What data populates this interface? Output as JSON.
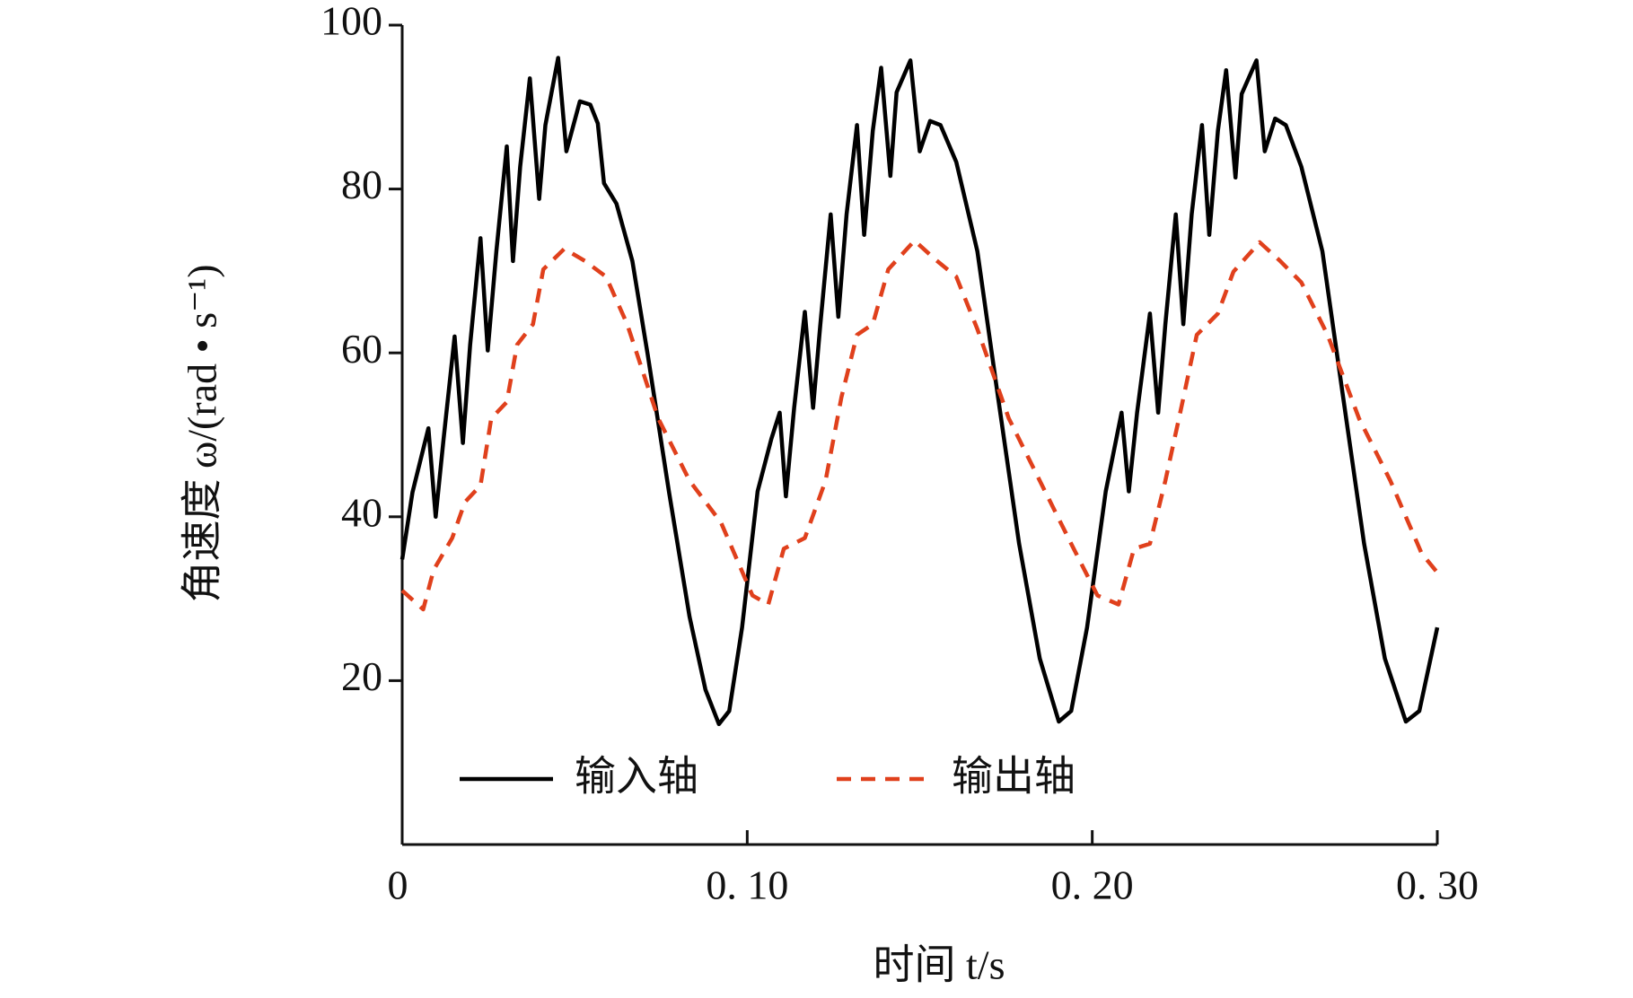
{
  "chart_data": {
    "type": "line",
    "xlabel": "时间 t/s",
    "ylabel": "角速度 ω/(rad • s⁻¹)",
    "xlim": [
      0,
      0.3
    ],
    "ylim": [
      0,
      100
    ],
    "xticks": [
      0,
      {
        "value": 0.1,
        "label": "0. 10"
      },
      {
        "value": 0.2,
        "label": "0. 20"
      },
      {
        "value": 0.3,
        "label": "0. 30"
      }
    ],
    "yticks": [
      20,
      40,
      60,
      80,
      100
    ],
    "legend": "bottom",
    "series": [
      {
        "name": "输入轴",
        "color": "#000000",
        "dash": false,
        "x": [
          0,
          0.003,
          0.0076,
          0.0097,
          0.012,
          0.0152,
          0.0176,
          0.0197,
          0.0227,
          0.0248,
          0.0273,
          0.0303,
          0.0321,
          0.0342,
          0.037,
          0.0397,
          0.0415,
          0.0452,
          0.0476,
          0.0515,
          0.0545,
          0.0567,
          0.0585,
          0.0621,
          0.0667,
          0.0712,
          0.0773,
          0.0833,
          0.0879,
          0.0918,
          0.0948,
          0.0985,
          0.103,
          0.107,
          0.1094,
          0.1112,
          0.1136,
          0.1167,
          0.1191,
          0.1212,
          0.1242,
          0.1264,
          0.1288,
          0.1318,
          0.1339,
          0.1364,
          0.1388,
          0.1415,
          0.1433,
          0.1473,
          0.15,
          0.153,
          0.156,
          0.1606,
          0.1667,
          0.1727,
          0.1788,
          0.1848,
          0.1903,
          0.1939,
          0.1985,
          0.2039,
          0.2085,
          0.2106,
          0.213,
          0.2167,
          0.2191,
          0.2212,
          0.2242,
          0.2264,
          0.2288,
          0.2318,
          0.2339,
          0.2364,
          0.2388,
          0.2415,
          0.2433,
          0.2476,
          0.25,
          0.253,
          0.2561,
          0.2606,
          0.2667,
          0.2727,
          0.2788,
          0.2848,
          0.2909,
          0.2948,
          0.3
        ],
        "values": [
          34.8,
          43,
          50.8,
          40,
          49.5,
          62,
          49,
          61,
          74,
          60.3,
          72.4,
          85.2,
          71.2,
          82.7,
          93.5,
          78.8,
          87.8,
          96,
          84.6,
          90.7,
          90.3,
          88,
          80.7,
          78.2,
          71.2,
          59.7,
          43.1,
          27.8,
          18.9,
          14.7,
          16.3,
          26.5,
          43.1,
          49.5,
          52.7,
          42.5,
          53.3,
          65,
          53.3,
          63.5,
          76.9,
          64.4,
          76.9,
          87.8,
          74.4,
          87.1,
          94.8,
          81.6,
          91.8,
          95.7,
          84.6,
          88.3,
          87.8,
          83.3,
          72.4,
          54.6,
          36.7,
          22.7,
          15,
          16.3,
          26.5,
          43.1,
          52.7,
          43.1,
          52.7,
          64.8,
          52.7,
          63.5,
          76.9,
          63.5,
          76.9,
          87.8,
          74.4,
          87.1,
          94.5,
          81.4,
          91.6,
          95.7,
          84.6,
          88.6,
          87.8,
          82.7,
          72.4,
          54.6,
          36.7,
          22.7,
          15,
          16.3,
          26.5
        ]
      },
      {
        "name": "输出轴",
        "color": "#e0401c",
        "dash": true,
        "x": [
          0,
          0.0061,
          0.0091,
          0.0145,
          0.0182,
          0.0227,
          0.0258,
          0.0303,
          0.0333,
          0.0379,
          0.0409,
          0.047,
          0.053,
          0.0591,
          0.0652,
          0.0742,
          0.0833,
          0.0924,
          0.1015,
          0.1061,
          0.1106,
          0.1167,
          0.1227,
          0.1273,
          0.1318,
          0.1364,
          0.1409,
          0.1485,
          0.1545,
          0.1606,
          0.1667,
          0.1758,
          0.1848,
          0.1939,
          0.2015,
          0.2076,
          0.2121,
          0.2167,
          0.2212,
          0.2258,
          0.2303,
          0.2364,
          0.2409,
          0.2485,
          0.2545,
          0.2606,
          0.2682,
          0.2773,
          0.2864,
          0.2955,
          0.3
        ],
        "values": [
          31,
          28.7,
          33.5,
          37.4,
          41.8,
          43.8,
          52,
          54,
          61,
          63.5,
          70.2,
          72.7,
          71.2,
          69.3,
          63.5,
          52,
          44.4,
          39.3,
          30.4,
          29.3,
          36.1,
          37.4,
          44.4,
          54.6,
          62.2,
          63.5,
          70.2,
          73.7,
          71.4,
          69.3,
          62.9,
          52,
          44.4,
          36.7,
          30.4,
          29.3,
          36.1,
          36.7,
          44.4,
          53.3,
          62.2,
          64.8,
          69.9,
          73.5,
          71.2,
          68.6,
          62.2,
          52,
          44.4,
          35.5,
          33.2
        ]
      }
    ]
  }
}
